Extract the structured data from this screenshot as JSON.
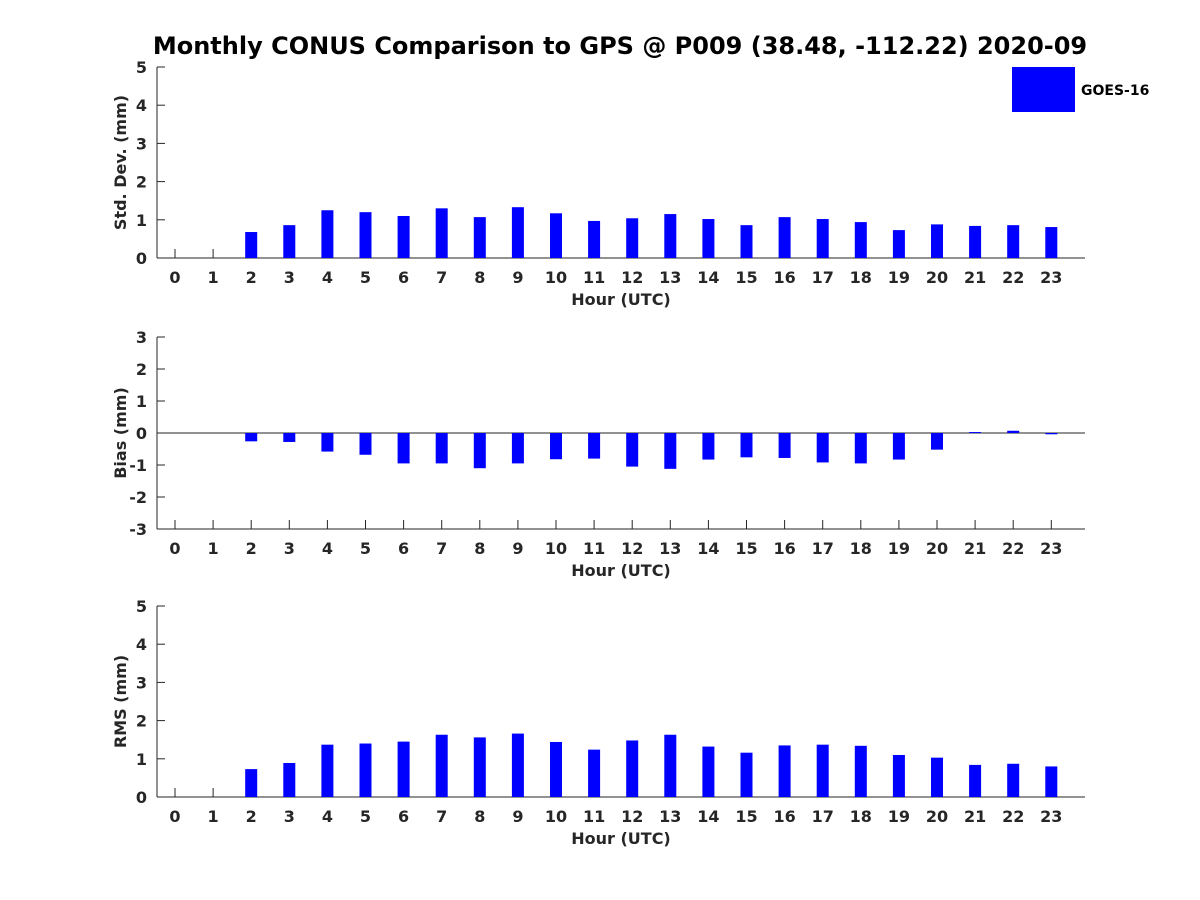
{
  "title": "Monthly CONUS Comparison to GPS @ P009 (38.48, -112.22) 2020-09",
  "legend": {
    "label": "GOES-16",
    "color": "#0000FF",
    "placement": "top-right"
  },
  "chart_data": [
    {
      "type": "bar",
      "name": "std",
      "xlabel": "Hour (UTC)",
      "ylabel": "Std. Dev. (mm)",
      "ylim": [
        0,
        5
      ],
      "yticks": [
        0,
        1,
        2,
        3,
        4,
        5
      ],
      "categories": [
        0,
        1,
        2,
        3,
        4,
        5,
        6,
        7,
        8,
        9,
        10,
        11,
        12,
        13,
        14,
        15,
        16,
        17,
        18,
        19,
        20,
        21,
        22,
        23
      ],
      "series": [
        {
          "name": "GOES-16",
          "color": "#0000FF",
          "values": [
            null,
            null,
            0.68,
            0.86,
            1.25,
            1.2,
            1.1,
            1.3,
            1.07,
            1.33,
            1.17,
            0.97,
            1.04,
            1.15,
            1.02,
            0.86,
            1.07,
            1.02,
            0.94,
            0.73,
            0.88,
            0.84,
            0.86,
            0.81
          ]
        }
      ]
    },
    {
      "type": "bar",
      "name": "bias",
      "xlabel": "Hour (UTC)",
      "ylabel": "Bias (mm)",
      "ylim": [
        -3,
        3
      ],
      "yticks": [
        -3,
        -2,
        -1,
        0,
        1,
        2,
        3
      ],
      "categories": [
        0,
        1,
        2,
        3,
        4,
        5,
        6,
        7,
        8,
        9,
        10,
        11,
        12,
        13,
        14,
        15,
        16,
        17,
        18,
        19,
        20,
        21,
        22,
        23
      ],
      "series": [
        {
          "name": "GOES-16",
          "color": "#0000FF",
          "values": [
            null,
            null,
            -0.26,
            -0.28,
            -0.58,
            -0.68,
            -0.95,
            -0.95,
            -1.1,
            -0.95,
            -0.82,
            -0.8,
            -1.05,
            -1.12,
            -0.83,
            -0.76,
            -0.78,
            -0.92,
            -0.95,
            -0.83,
            -0.52,
            0.03,
            0.07,
            -0.04
          ]
        }
      ]
    },
    {
      "type": "bar",
      "name": "rms",
      "xlabel": "Hour (UTC)",
      "ylabel": "RMS (mm)",
      "ylim": [
        0,
        5
      ],
      "yticks": [
        0,
        1,
        2,
        3,
        4,
        5
      ],
      "categories": [
        0,
        1,
        2,
        3,
        4,
        5,
        6,
        7,
        8,
        9,
        10,
        11,
        12,
        13,
        14,
        15,
        16,
        17,
        18,
        19,
        20,
        21,
        22,
        23
      ],
      "series": [
        {
          "name": "GOES-16",
          "color": "#0000FF",
          "values": [
            null,
            null,
            0.73,
            0.89,
            1.37,
            1.4,
            1.45,
            1.63,
            1.56,
            1.66,
            1.44,
            1.24,
            1.48,
            1.63,
            1.32,
            1.16,
            1.35,
            1.37,
            1.34,
            1.1,
            1.03,
            0.84,
            0.87,
            0.8
          ]
        }
      ]
    }
  ]
}
